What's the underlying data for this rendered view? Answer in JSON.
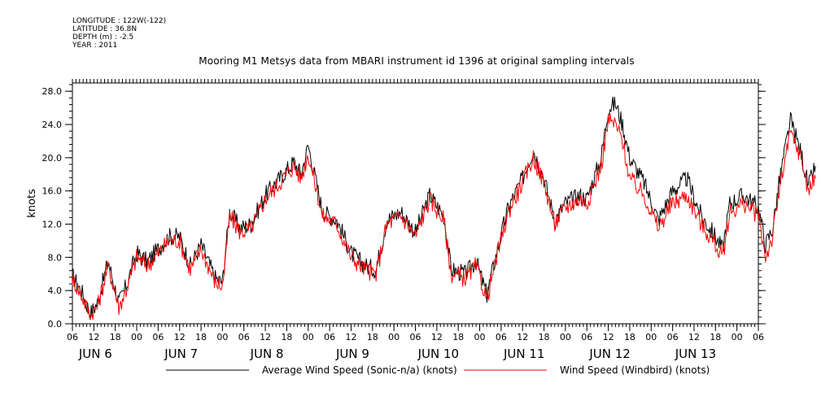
{
  "meta": {
    "longitude": "LONGITUDE : 122W(-122)",
    "latitude": "LATITUDE : 36.8N",
    "depth": "DEPTH (m) : -2.5",
    "year": "YEAR : 2011"
  },
  "chart_data": {
    "type": "line",
    "title": "Mooring M1 Metsys data from MBARI instrument id 1396 at original sampling intervals",
    "ylabel": "knots",
    "ylim": [
      0,
      29
    ],
    "yticks": [
      "0.0",
      "4.0",
      "8.0",
      "12.0",
      "16.0",
      "20.0",
      "24.0",
      "28.0"
    ],
    "xlim_hours": [
      -18,
      174
    ],
    "hour_tick_labels": [
      "06",
      "12",
      "18",
      "00",
      "06",
      "12",
      "18",
      "00",
      "06",
      "12",
      "18",
      "00",
      "06",
      "12",
      "18",
      "00",
      "06",
      "12",
      "18",
      "00",
      "06",
      "12",
      "18",
      "00",
      "06",
      "12",
      "18",
      "00",
      "06",
      "12",
      "18",
      "00",
      "06"
    ],
    "day_labels": [
      "JUN  6",
      "JUN  7",
      "JUN  8",
      "JUN  9",
      "JUN 10",
      "JUN 11",
      "JUN 12",
      "JUN 13"
    ],
    "series": [
      {
        "name": "Average Wind Speed (Sonic-n/a) (knots)",
        "color": "#000000",
        "points": [
          [
            -18,
            5.8
          ],
          [
            -15,
            3.5
          ],
          [
            -13,
            1.2
          ],
          [
            -11,
            2.5
          ],
          [
            -8,
            7.5
          ],
          [
            -5,
            2.5
          ],
          [
            -3,
            4.5
          ],
          [
            0,
            8.5
          ],
          [
            3,
            7.5
          ],
          [
            6,
            9.0
          ],
          [
            9,
            10.5
          ],
          [
            12,
            10.5
          ],
          [
            15,
            7.0
          ],
          [
            18,
            9.5
          ],
          [
            22,
            5.5
          ],
          [
            24,
            5.0
          ],
          [
            26,
            13.5
          ],
          [
            29,
            11.5
          ],
          [
            32,
            12.0
          ],
          [
            36,
            15.5
          ],
          [
            40,
            17.5
          ],
          [
            44,
            19.5
          ],
          [
            46,
            18.0
          ],
          [
            48,
            21.5
          ],
          [
            52,
            13.5
          ],
          [
            56,
            12.5
          ],
          [
            60,
            8.5
          ],
          [
            64,
            7.0
          ],
          [
            67,
            6.5
          ],
          [
            70,
            12.5
          ],
          [
            74,
            13.5
          ],
          [
            78,
            11.0
          ],
          [
            82,
            15.5
          ],
          [
            86,
            13.0
          ],
          [
            88,
            6.5
          ],
          [
            92,
            6.0
          ],
          [
            95,
            7.5
          ],
          [
            98,
            3.5
          ],
          [
            101,
            9.0
          ],
          [
            104,
            14.0
          ],
          [
            108,
            17.5
          ],
          [
            111,
            21.0
          ],
          [
            114,
            17.5
          ],
          [
            117,
            12.5
          ],
          [
            120,
            14.5
          ],
          [
            124,
            15.5
          ],
          [
            126,
            15.0
          ],
          [
            130,
            20.0
          ],
          [
            132,
            26.0
          ],
          [
            134,
            26.5
          ],
          [
            136,
            24.0
          ],
          [
            138,
            20.0
          ],
          [
            142,
            17.0
          ],
          [
            146,
            12.5
          ],
          [
            150,
            16.0
          ],
          [
            154,
            17.5
          ],
          [
            158,
            13.0
          ],
          [
            162,
            10.5
          ],
          [
            164,
            9.0
          ],
          [
            166,
            14.5
          ],
          [
            170,
            15.5
          ],
          [
            174,
            14.0
          ],
          [
            176,
            9.5
          ],
          [
            178,
            11.5
          ],
          [
            180,
            17.5
          ],
          [
            183,
            24.5
          ],
          [
            186,
            20.5
          ],
          [
            188,
            16.5
          ],
          [
            190,
            19.0
          ]
        ]
      },
      {
        "name": "Wind Speed (Windbird) (knots)",
        "color": "#ff0000",
        "points": [
          [
            -18,
            5.5
          ],
          [
            -15,
            3.0
          ],
          [
            -13,
            1.0
          ],
          [
            -11,
            2.0
          ],
          [
            -8,
            7.0
          ],
          [
            -5,
            2.0
          ],
          [
            -3,
            4.0
          ],
          [
            0,
            8.0
          ],
          [
            3,
            7.0
          ],
          [
            6,
            8.5
          ],
          [
            9,
            10.0
          ],
          [
            12,
            10.0
          ],
          [
            15,
            6.5
          ],
          [
            18,
            9.0
          ],
          [
            22,
            5.0
          ],
          [
            24,
            4.5
          ],
          [
            26,
            13.0
          ],
          [
            29,
            11.0
          ],
          [
            32,
            11.5
          ],
          [
            36,
            15.0
          ],
          [
            40,
            17.0
          ],
          [
            44,
            19.0
          ],
          [
            46,
            17.5
          ],
          [
            48,
            20.5
          ],
          [
            52,
            13.0
          ],
          [
            56,
            12.0
          ],
          [
            60,
            8.0
          ],
          [
            64,
            6.5
          ],
          [
            67,
            6.0
          ],
          [
            70,
            12.0
          ],
          [
            74,
            13.0
          ],
          [
            78,
            10.5
          ],
          [
            82,
            15.0
          ],
          [
            86,
            12.5
          ],
          [
            88,
            6.0
          ],
          [
            92,
            5.5
          ],
          [
            95,
            7.0
          ],
          [
            98,
            3.0
          ],
          [
            101,
            8.5
          ],
          [
            104,
            13.5
          ],
          [
            108,
            17.0
          ],
          [
            111,
            20.0
          ],
          [
            114,
            17.0
          ],
          [
            117,
            12.0
          ],
          [
            120,
            14.0
          ],
          [
            124,
            15.0
          ],
          [
            126,
            14.5
          ],
          [
            130,
            19.0
          ],
          [
            132,
            24.5
          ],
          [
            134,
            24.0
          ],
          [
            136,
            22.0
          ],
          [
            138,
            17.5
          ],
          [
            142,
            15.5
          ],
          [
            146,
            11.5
          ],
          [
            150,
            14.5
          ],
          [
            154,
            15.5
          ],
          [
            158,
            12.0
          ],
          [
            162,
            9.5
          ],
          [
            164,
            8.0
          ],
          [
            166,
            13.5
          ],
          [
            170,
            14.5
          ],
          [
            174,
            13.0
          ],
          [
            176,
            8.0
          ],
          [
            178,
            10.5
          ],
          [
            180,
            16.5
          ],
          [
            183,
            23.0
          ],
          [
            186,
            20.0
          ],
          [
            188,
            16.0
          ],
          [
            190,
            17.5
          ]
        ]
      }
    ],
    "legend_position": "bottom"
  }
}
